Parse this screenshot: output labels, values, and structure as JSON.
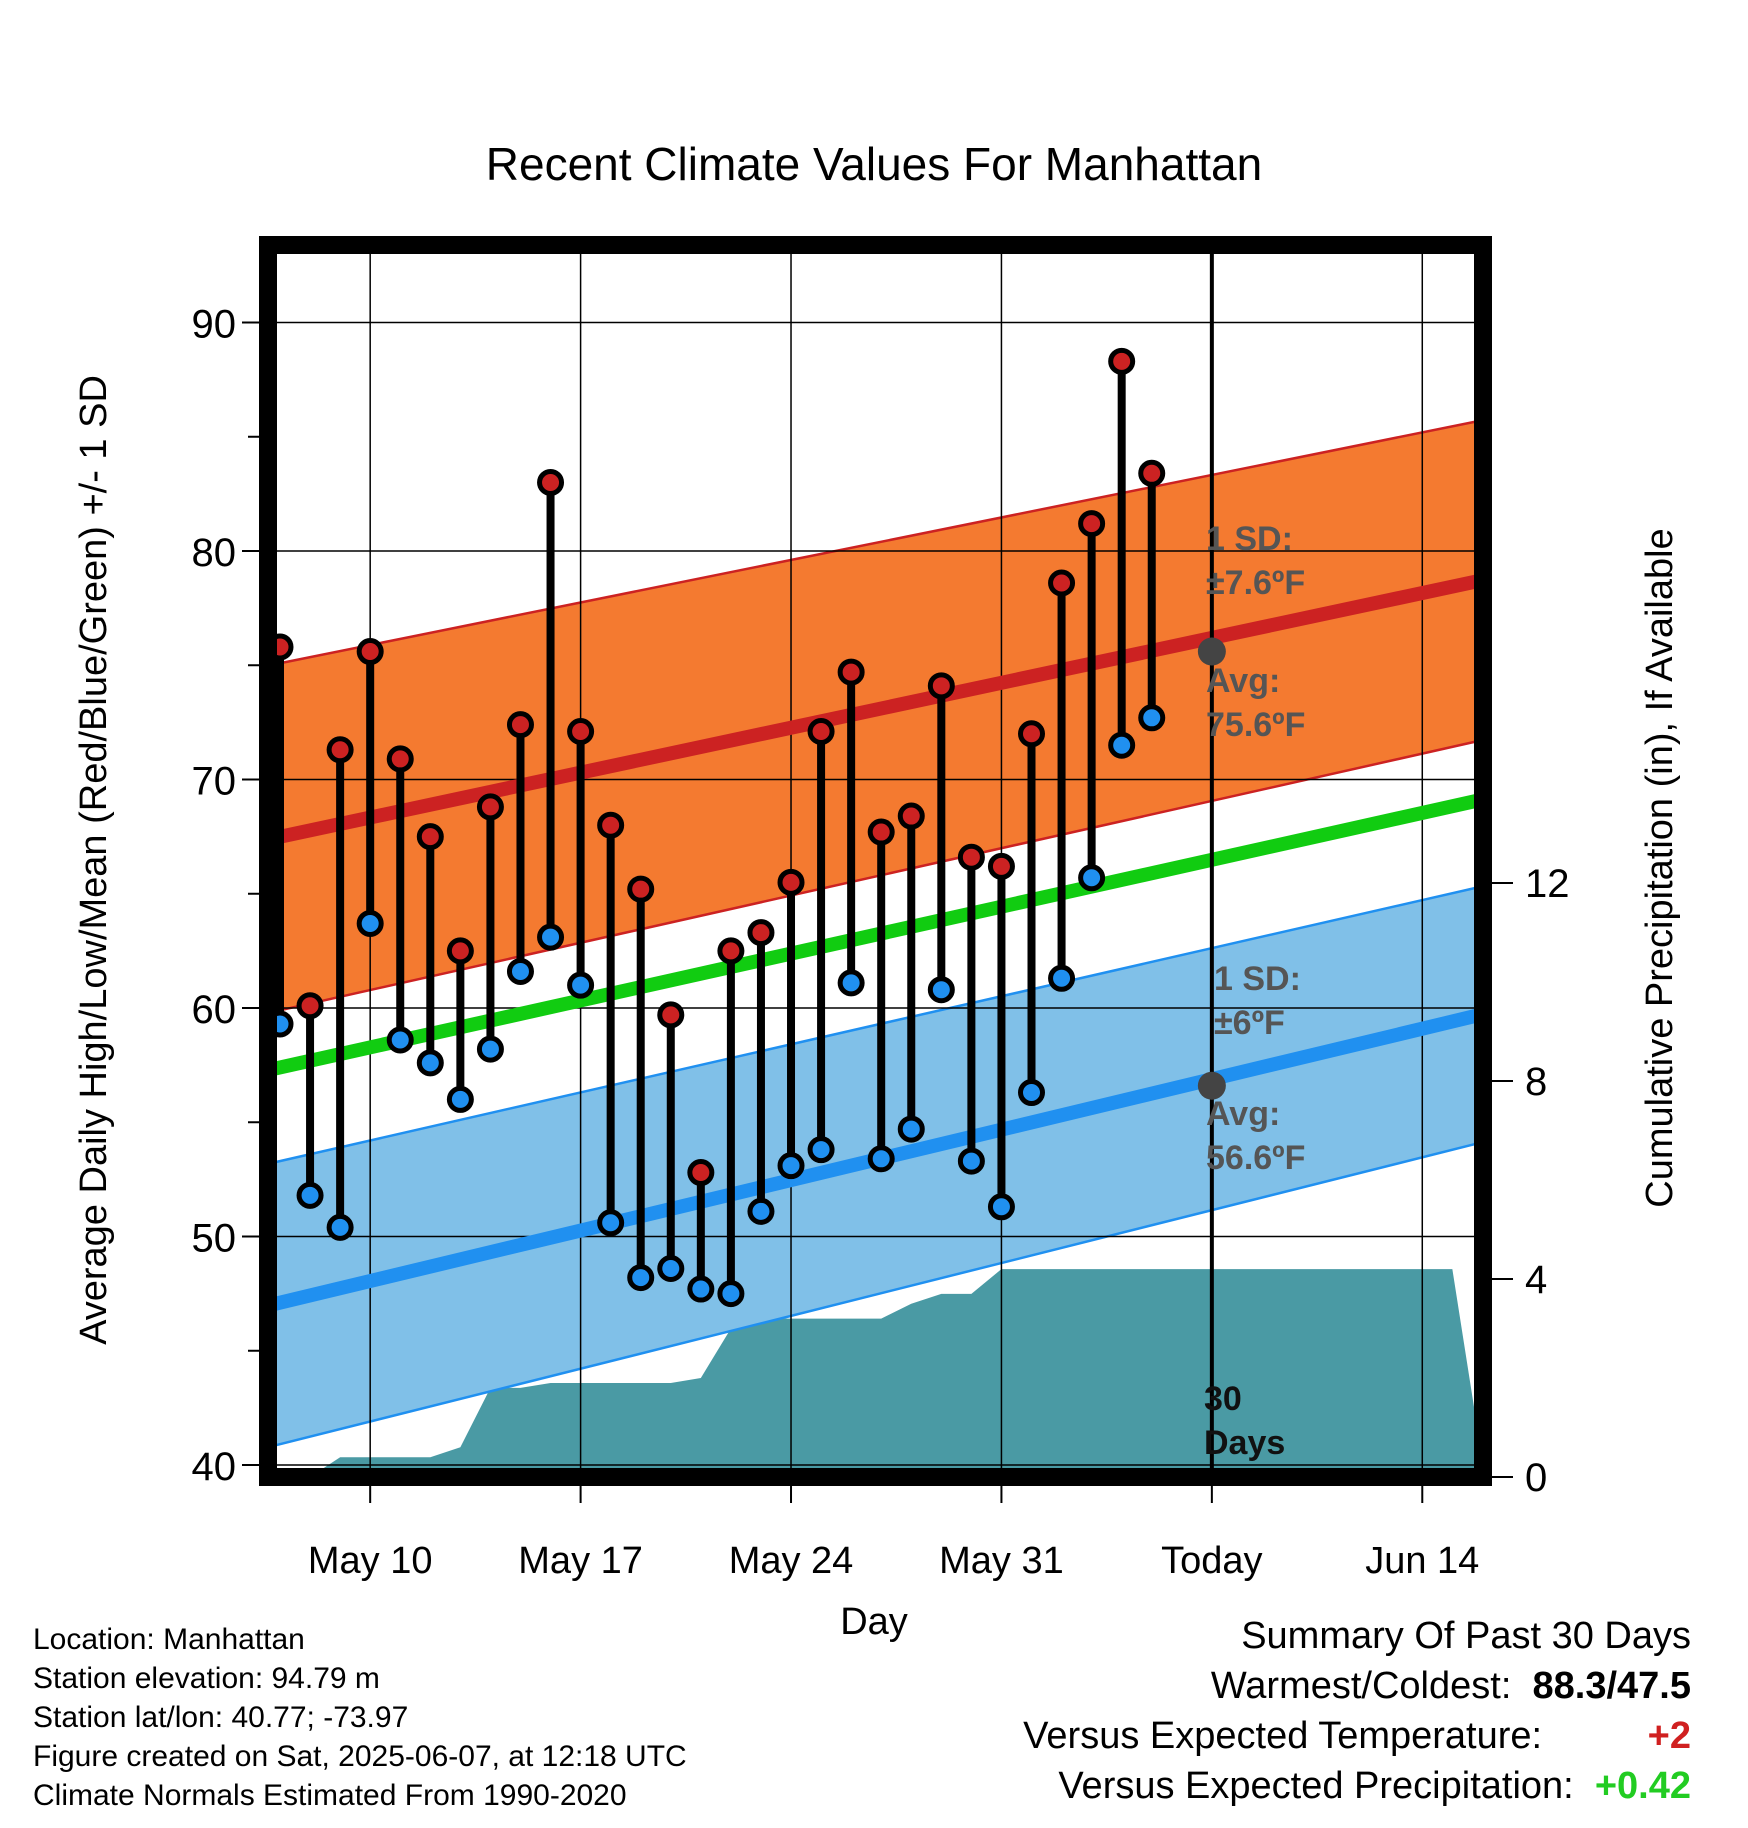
{
  "chart_data": {
    "type": "line",
    "title": "Recent Climate Values For Manhattan",
    "xlabel": "Day",
    "ylabel": "Average Daily High/Low/Mean (Red/Blue/Green) +/- 1 SD",
    "y2label": "Cumulative Precipitation (in), If Available",
    "ylim": [
      40,
      94
    ],
    "y_ticks": [
      40,
      50,
      60,
      70,
      80,
      90
    ],
    "y2_ticks": [
      0,
      4,
      8,
      12
    ],
    "x_ticks": [
      {
        "day": 3,
        "label": "May 10"
      },
      {
        "day": 10,
        "label": "May 17"
      },
      {
        "day": 17,
        "label": "May 24"
      },
      {
        "day": 24,
        "label": "May 31"
      },
      {
        "day": 31,
        "label": "Today"
      },
      {
        "day": 38,
        "label": "Jun 14"
      }
    ],
    "series": [
      {
        "name": "High",
        "color": "#cc2222",
        "values": [
          75.8,
          60.1,
          71.3,
          75.6,
          70.9,
          67.5,
          62.5,
          68.8,
          72.4,
          83.0,
          72.1,
          68.0,
          65.2,
          59.7,
          52.8,
          62.5,
          63.3,
          65.5,
          72.1,
          74.7,
          67.7,
          68.4,
          74.1,
          66.6,
          66.2,
          72.0,
          78.6,
          81.2,
          88.3,
          83.4
        ]
      },
      {
        "name": "Low",
        "color": "#2090f0",
        "values": [
          59.3,
          51.8,
          50.4,
          63.7,
          58.6,
          57.6,
          56.0,
          58.2,
          61.6,
          63.1,
          61.0,
          50.6,
          48.2,
          48.6,
          47.7,
          47.5,
          51.1,
          53.1,
          53.8,
          61.1,
          53.4,
          54.7,
          60.8,
          53.3,
          51.3,
          56.3,
          61.3,
          65.7,
          71.5,
          72.7
        ]
      }
    ],
    "normals": {
      "high_avg_start": 67.4,
      "high_avg_end": 78.7,
      "high_sd_start": 7.6,
      "high_sd_end": 7.0,
      "low_avg_start": 47.0,
      "low_avg_end": 59.7,
      "low_sd_start": 6.2,
      "low_sd_end": 5.6,
      "mean_start": 57.3,
      "mean_end": 69.1
    },
    "precip_cumulative": {
      "days": [
        0,
        1,
        2,
        3,
        4,
        5,
        6,
        7,
        8,
        9,
        10,
        11,
        12,
        13,
        14,
        15,
        16,
        17,
        18,
        19,
        20,
        21,
        22,
        23,
        24,
        25,
        26,
        27,
        28,
        29,
        30,
        39
      ],
      "values": [
        0.0,
        0.0,
        0.4,
        0.4,
        0.4,
        0.4,
        0.6,
        1.8,
        1.8,
        1.9,
        1.9,
        1.9,
        1.9,
        1.9,
        2.0,
        3.0,
        3.2,
        3.2,
        3.2,
        3.2,
        3.2,
        3.5,
        3.7,
        3.7,
        4.2,
        4.2,
        4.2,
        4.2,
        4.2,
        4.2,
        4.2,
        4.2
      ]
    },
    "annotations": {
      "high_sd_label": "1 SD:",
      "high_sd_value": "±7.6ºF",
      "high_avg_label": "Avg:",
      "high_avg_value": "75.6ºF",
      "low_sd_label": "1 SD:",
      "low_sd_value": "±6ºF",
      "low_avg_label": "Avg:",
      "low_avg_value": "56.6ºF",
      "today_avg_high": 75.6,
      "today_avg_low": 56.6,
      "days_number": "30",
      "days_word": "Days"
    },
    "colors": {
      "high_band": "#f47a30",
      "high_line": "#cc2222",
      "low_band": "#80c0e8",
      "low_line": "#2090f0",
      "mean_line": "#11cc11",
      "precip": "#4a9aa4"
    }
  },
  "footer": {
    "location": "Location: Manhattan",
    "elevation": "Station elevation: 94.79 m",
    "latlon": "Station lat/lon: 40.77; -73.97",
    "created": "Figure created on Sat, 2025-06-07, at 12:18 UTC",
    "normals": "Climate Normals Estimated From 1990-2020"
  },
  "summary": {
    "title": "Summary Of Past 30 Days",
    "warm_cold_label": "Warmest/Coldest:",
    "warm_cold_value": "88.3/47.5",
    "temp_label": "Versus Expected Temperature:",
    "temp_value": "+2",
    "precip_label": "Versus Expected Precipitation:",
    "precip_value": "+0.42"
  }
}
